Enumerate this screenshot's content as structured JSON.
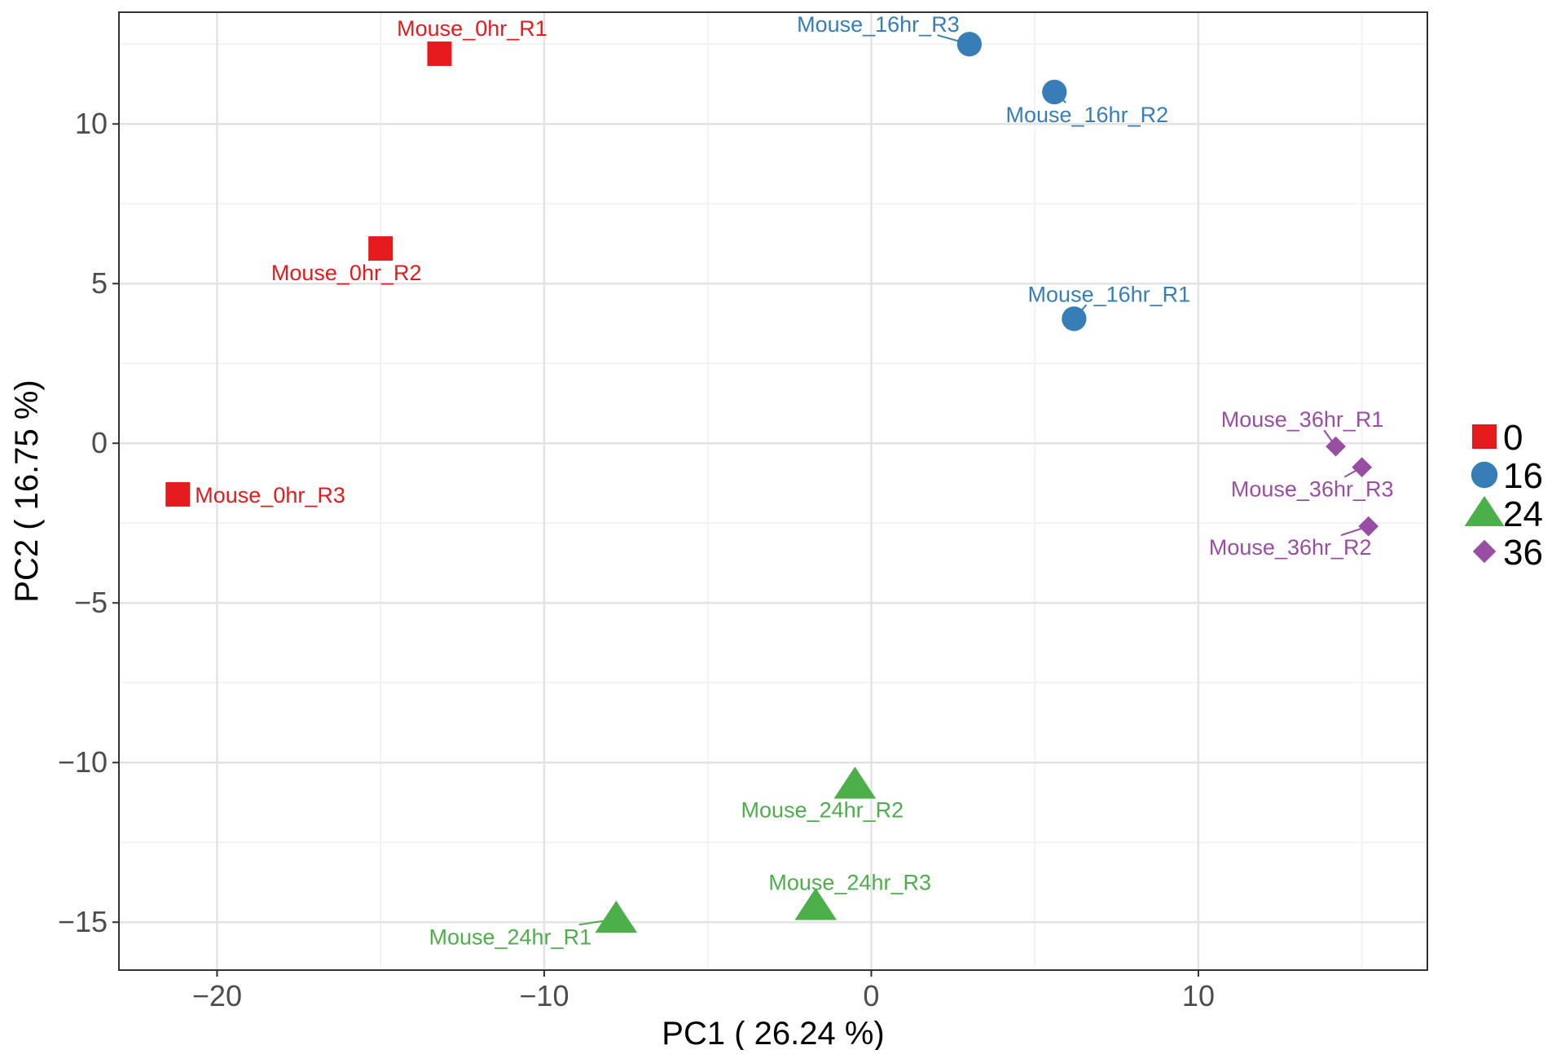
{
  "chart_data": {
    "type": "scatter",
    "title": "",
    "xlabel": "PC1 ( 26.24 %)",
    "ylabel": "PC2 ( 16.75 %)",
    "xlim": [
      -23,
      17
    ],
    "ylim": [
      -16.5,
      13.5
    ],
    "x_ticks": [
      -20,
      -10,
      0,
      10
    ],
    "y_ticks": [
      10,
      5,
      0,
      -5,
      -10,
      -15
    ],
    "x_tick_labels": [
      "−20",
      "−10",
      "0",
      "10"
    ],
    "y_tick_labels": [
      "10",
      "5",
      "0",
      "−5",
      "−10",
      "−15"
    ],
    "grid": true,
    "legend_position": "right",
    "series": [
      {
        "name": "0",
        "color": "#E41A1C",
        "shape": "square",
        "points": [
          {
            "label": "Mouse_0hr_R1",
            "x": -13.2,
            "y": 12.2
          },
          {
            "label": "Mouse_0hr_R2",
            "x": -15.0,
            "y": 6.1
          },
          {
            "label": "Mouse_0hr_R3",
            "x": -21.2,
            "y": -1.6
          }
        ]
      },
      {
        "name": "16",
        "color": "#377EB8",
        "shape": "circle",
        "points": [
          {
            "label": "Mouse_16hr_R3",
            "x": 3.0,
            "y": 12.5
          },
          {
            "label": "Mouse_16hr_R2",
            "x": 5.6,
            "y": 11.0
          },
          {
            "label": "Mouse_16hr_R1",
            "x": 6.2,
            "y": 3.9
          }
        ]
      },
      {
        "name": "24",
        "color": "#4DAF4A",
        "shape": "triangle",
        "points": [
          {
            "label": "Mouse_24hr_R2",
            "x": -0.5,
            "y": -10.7
          },
          {
            "label": "Mouse_24hr_R3",
            "x": -1.7,
            "y": -14.5
          },
          {
            "label": "Mouse_24hr_R1",
            "x": -7.8,
            "y": -14.9
          }
        ]
      },
      {
        "name": "36",
        "color": "#984EA3",
        "shape": "diamond",
        "points": [
          {
            "label": "Mouse_36hr_R1",
            "x": 14.2,
            "y": -0.1
          },
          {
            "label": "Mouse_36hr_R3",
            "x": 15.0,
            "y": -0.75
          },
          {
            "label": "Mouse_36hr_R2",
            "x": 15.2,
            "y": -2.6
          }
        ]
      }
    ]
  }
}
